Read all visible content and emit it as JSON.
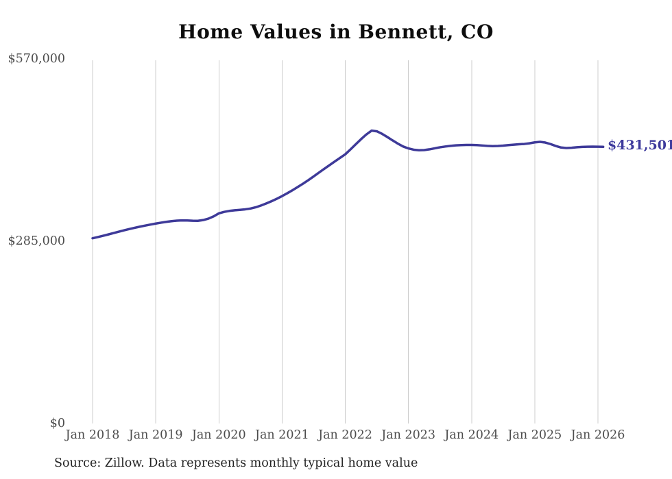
{
  "title": "Home Values in Bennett, CO",
  "source_note": "Source: Zillow. Data represents monthly typical home value",
  "final_value_label": "$431,501",
  "colors": {
    "line": "#3e3a99",
    "final_label": "#3d3a9c",
    "gridline": "#cccccc",
    "axis_text": "#4d4d4d",
    "title_text": "#0d0d0d",
    "source_text": "#222222",
    "background": "#ffffff"
  },
  "chart_data": {
    "type": "line",
    "title": "Home Values in Bennett, CO",
    "xlabel": "",
    "ylabel": "",
    "ylim": [
      0,
      570000
    ],
    "grid": "vertical-only",
    "legend": "none",
    "x_tick_labels": [
      "Jan 2018",
      "Jan 2019",
      "Jan 2020",
      "Jan 2021",
      "Jan 2022",
      "Jan 2023",
      "Jan 2024",
      "Jan 2025",
      "Jan 2026"
    ],
    "y_ticks": [
      {
        "label": "$570,000",
        "value": 570000
      },
      {
        "label": "$285,000",
        "value": 285000
      },
      {
        "label": "$0",
        "value": 0
      }
    ],
    "final_value": 431501,
    "series": [
      {
        "name": "Monthly typical home value",
        "start_month": "2018-01",
        "interval": "monthly",
        "values": [
          288500,
          290400,
          292400,
          294500,
          296700,
          298900,
          301000,
          303000,
          304900,
          306700,
          308400,
          310000,
          311500,
          312900,
          314200,
          315300,
          316100,
          316500,
          316400,
          316000,
          315800,
          317000,
          319200,
          322800,
          327500,
          329800,
          331300,
          332300,
          333000,
          333800,
          335000,
          337000,
          339800,
          343000,
          346500,
          350300,
          354500,
          359000,
          363800,
          368800,
          374000,
          379500,
          385300,
          391200,
          397000,
          402800,
          408500,
          414200,
          419800,
          427500,
          435500,
          443500,
          450800,
          456800,
          455800,
          451800,
          446800,
          441500,
          436500,
          432000,
          429000,
          427000,
          426200,
          426400,
          427600,
          429200,
          430800,
          432000,
          433000,
          433800,
          434200,
          434400,
          434500,
          434200,
          433600,
          433000,
          432600,
          432800,
          433400,
          434200,
          434900,
          435500,
          436000,
          437000,
          438500,
          439300,
          438200,
          435800,
          432800,
          430400,
          429600,
          430000,
          430800,
          431400,
          431700,
          431800,
          431700,
          431501
        ]
      }
    ]
  }
}
